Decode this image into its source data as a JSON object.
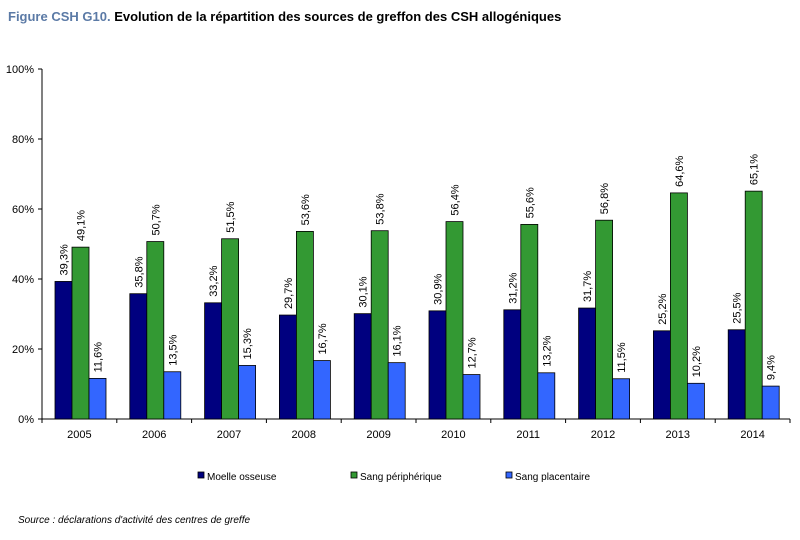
{
  "title": {
    "prefix": "Figure CSH G10.",
    "text": " Evolution de la répartition des sources de greffon des CSH allogéniques"
  },
  "source": "Source : déclarations d'activité des centres de greffe",
  "colors": {
    "series": [
      "#00007f",
      "#339933",
      "#3366ff"
    ],
    "border": "#000000"
  },
  "chart_data": {
    "type": "bar",
    "title": "Evolution de la répartition des sources de greffon des CSH allogéniques",
    "categories": [
      "2005",
      "2006",
      "2007",
      "2008",
      "2009",
      "2010",
      "2011",
      "2012",
      "2013",
      "2014"
    ],
    "series": [
      {
        "name": "Moelle osseuse",
        "values": [
          39.3,
          35.8,
          33.2,
          29.7,
          30.1,
          30.9,
          31.2,
          31.7,
          25.2,
          25.5
        ]
      },
      {
        "name": "Sang périphérique",
        "values": [
          49.1,
          50.7,
          51.5,
          53.6,
          53.8,
          56.4,
          55.6,
          56.8,
          64.6,
          65.1
        ]
      },
      {
        "name": "Sang placentaire",
        "values": [
          11.6,
          13.5,
          15.3,
          16.7,
          16.1,
          12.7,
          13.2,
          11.5,
          10.2,
          9.4
        ]
      }
    ],
    "value_labels": [
      [
        "39,3%",
        "35,8%",
        "33,2%",
        "29,7%",
        "30,1%",
        "30,9%",
        "31,2%",
        "31,7%",
        "25,2%",
        "25,5%"
      ],
      [
        "49,1%",
        "50,7%",
        "51,5%",
        "53,6%",
        "53,8%",
        "56,4%",
        "55,6%",
        "56,8%",
        "64,6%",
        "65,1%"
      ],
      [
        "11,6%",
        "13,5%",
        "15,3%",
        "16,7%",
        "16,1%",
        "12,7%",
        "13,2%",
        "11,5%",
        "10,2%",
        "9,4%"
      ]
    ],
    "ylim": [
      0,
      100
    ],
    "yticks": [
      0,
      20,
      40,
      60,
      80,
      100
    ],
    "ytick_labels": [
      "0%",
      "20%",
      "40%",
      "60%",
      "80%",
      "100%"
    ],
    "xlabel": "",
    "ylabel": "",
    "grid": false,
    "legend_position": "bottom"
  }
}
